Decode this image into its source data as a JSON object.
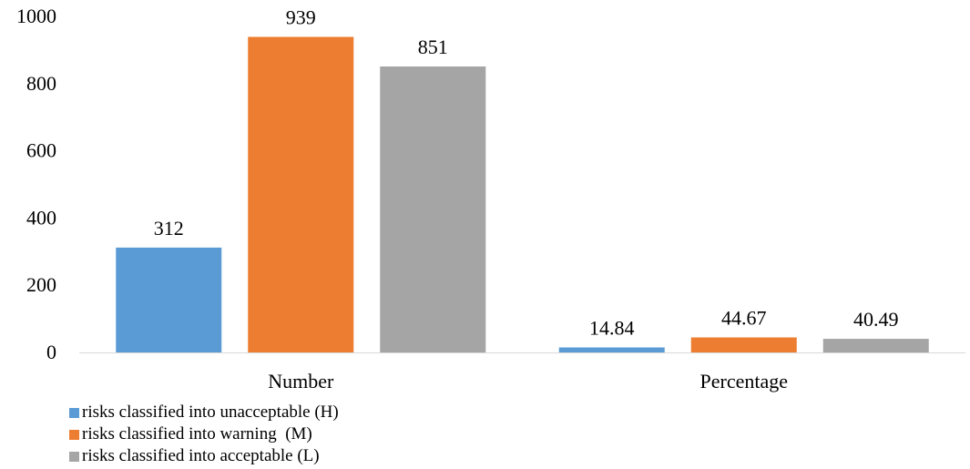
{
  "chart_data": {
    "type": "bar",
    "categories": [
      "Number",
      "Percentage"
    ],
    "series": [
      {
        "name": "risks classified into unacceptable (H)",
        "values": [
          312,
          14.84
        ],
        "labels": [
          "312",
          "14.84"
        ],
        "color": "#5b9bd5"
      },
      {
        "name": "risks classified into warning  (M)",
        "values": [
          939,
          44.67
        ],
        "labels": [
          "939",
          "44.67"
        ],
        "color": "#ed7d31"
      },
      {
        "name": "risks classified into acceptable (L)",
        "values": [
          851,
          40.49
        ],
        "labels": [
          "851",
          "40.49"
        ],
        "color": "#a5a5a5"
      }
    ],
    "ylim": [
      0,
      1000
    ],
    "yticks": [
      0,
      200,
      400,
      600,
      800,
      1000
    ],
    "grid": false,
    "legend_position": "bottom-left"
  }
}
